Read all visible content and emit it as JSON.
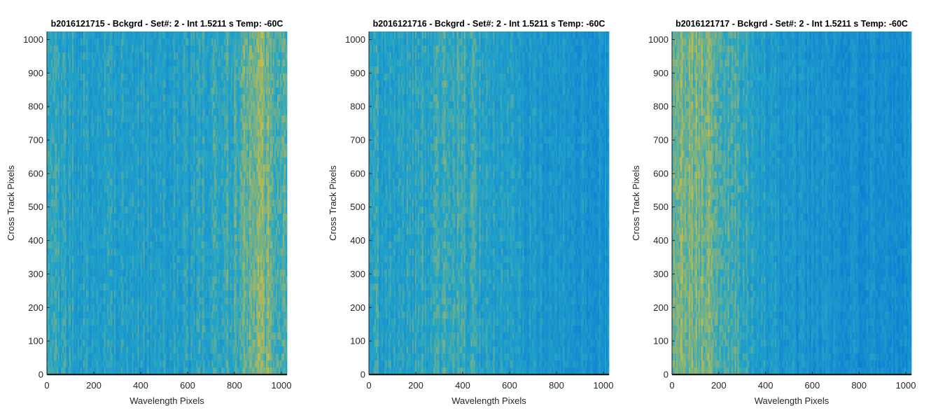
{
  "chart_data": [
    {
      "type": "heatmap",
      "title": "b2016121715 - Bckgrd - Set#: 2 - Int 1.5211 s Temp: -60C",
      "xlabel": "Wavelength Pixels",
      "ylabel": "Cross Track Pixels",
      "xlim": [
        0,
        1024
      ],
      "ylim": [
        0,
        1024
      ],
      "xticks": [
        0,
        200,
        400,
        600,
        800,
        1000
      ],
      "yticks": [
        0,
        100,
        200,
        300,
        400,
        500,
        600,
        700,
        800,
        900,
        1000
      ],
      "colormap": "parula",
      "colors": {
        "low": "#0f7fd3",
        "mid": "#22a4c8",
        "high": "#c6bd48"
      },
      "column_profile": {
        "x": [
          0,
          100,
          200,
          300,
          400,
          500,
          600,
          700,
          800,
          850,
          900,
          950,
          1024
        ],
        "level": [
          0.5,
          0.45,
          0.42,
          0.4,
          0.4,
          0.4,
          0.43,
          0.48,
          0.58,
          0.7,
          0.78,
          0.72,
          0.62
        ]
      }
    },
    {
      "type": "heatmap",
      "title": "b2016121716 - Bckgrd - Set#: 2 - Int 1.5211 s Temp: -60C",
      "xlabel": "Wavelength Pixels",
      "ylabel": "Cross Track Pixels",
      "xlim": [
        0,
        1024
      ],
      "ylim": [
        0,
        1024
      ],
      "xticks": [
        0,
        200,
        400,
        600,
        800,
        1000
      ],
      "yticks": [
        0,
        100,
        200,
        300,
        400,
        500,
        600,
        700,
        800,
        900,
        1000
      ],
      "colormap": "parula",
      "colors": {
        "low": "#0f7fd3",
        "mid": "#22a4c8",
        "high": "#c6bd48"
      },
      "column_profile": {
        "x": [
          0,
          100,
          200,
          300,
          350,
          400,
          500,
          600,
          700,
          800,
          900,
          1024
        ],
        "level": [
          0.48,
          0.45,
          0.48,
          0.55,
          0.58,
          0.55,
          0.45,
          0.4,
          0.36,
          0.33,
          0.3,
          0.28
        ]
      }
    },
    {
      "type": "heatmap",
      "title": "b2016121717 - Bckgrd - Set#: 2 - Int 1.5211 s Temp: -60C",
      "xlabel": "Wavelength Pixels",
      "ylabel": "Cross Track Pixels",
      "xlim": [
        0,
        1024
      ],
      "ylim": [
        0,
        1024
      ],
      "xticks": [
        0,
        200,
        400,
        600,
        800,
        1000
      ],
      "yticks": [
        0,
        100,
        200,
        300,
        400,
        500,
        600,
        700,
        800,
        900,
        1000
      ],
      "colormap": "parula",
      "colors": {
        "low": "#0f7fd3",
        "mid": "#22a4c8",
        "high": "#c6bd48"
      },
      "column_profile": {
        "x": [
          0,
          50,
          100,
          150,
          200,
          300,
          400,
          500,
          600,
          700,
          800,
          900,
          1024
        ],
        "level": [
          0.72,
          0.76,
          0.78,
          0.75,
          0.68,
          0.55,
          0.4,
          0.32,
          0.28,
          0.25,
          0.22,
          0.2,
          0.22
        ]
      }
    }
  ]
}
